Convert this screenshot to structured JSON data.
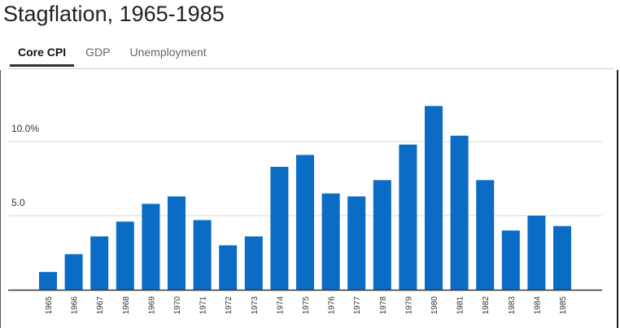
{
  "header": {
    "title": "Stagflation, 1965-1985"
  },
  "tabs": [
    {
      "label": "Core CPI",
      "active": true
    },
    {
      "label": "GDP",
      "active": false
    },
    {
      "label": "Unemployment",
      "active": false
    }
  ],
  "colors": {
    "bar": "#0a6cc4",
    "grid": "#d9d9d9",
    "axis": "#333333"
  },
  "chart_data": {
    "type": "bar",
    "title": "",
    "xlabel": "",
    "ylabel": "",
    "categories": [
      "1965",
      "1966",
      "1967",
      "1968",
      "1969",
      "1970",
      "1971",
      "1972",
      "1973",
      "1974",
      "1975",
      "1976",
      "1977",
      "1978",
      "1979",
      "1980",
      "1981",
      "1982",
      "1983",
      "1984",
      "1985"
    ],
    "values": [
      1.2,
      2.4,
      3.6,
      4.6,
      5.8,
      6.3,
      4.7,
      3.0,
      3.6,
      8.3,
      9.1,
      6.5,
      6.3,
      7.4,
      9.8,
      12.4,
      10.4,
      7.4,
      4.0,
      5.0,
      4.3
    ],
    "y_tick_labels": [
      {
        "value": 5,
        "label": "5.0"
      },
      {
        "value": 10,
        "label": "10.0%"
      }
    ],
    "ylim": [
      0,
      14
    ],
    "grid": true,
    "legend": "none"
  }
}
